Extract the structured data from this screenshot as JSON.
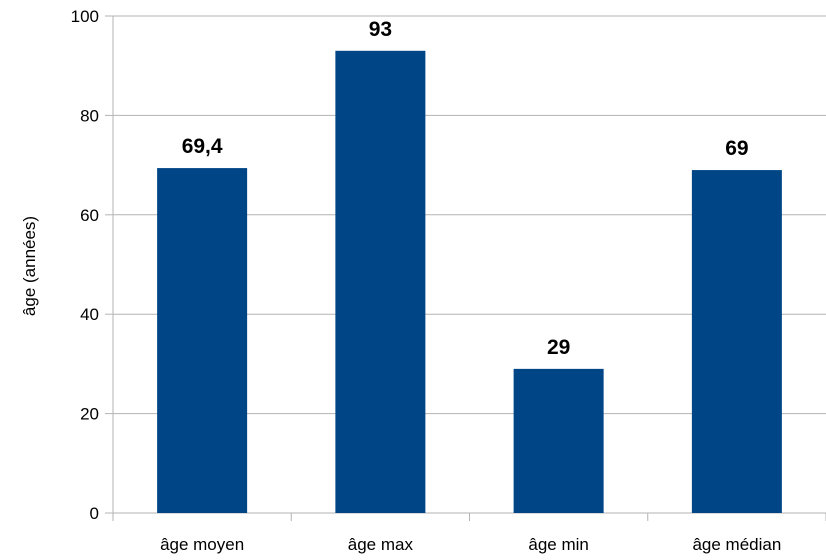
{
  "chart_data": {
    "type": "bar",
    "categories": [
      "âge moyen",
      "âge max",
      "âge min",
      "âge médian"
    ],
    "values": [
      69.4,
      93,
      29,
      69
    ],
    "data_labels": [
      "69,4",
      "93",
      "29",
      "69"
    ],
    "title": "",
    "xlabel": "",
    "ylabel": "âge (années)",
    "ylim": [
      0,
      100
    ],
    "yticks": [
      0,
      20,
      40,
      60,
      80,
      100
    ],
    "grid": true,
    "legend": "none",
    "colors": {
      "bar": "#004586",
      "grid": "#b3b3b3",
      "axis": "#b3b3b3"
    }
  }
}
